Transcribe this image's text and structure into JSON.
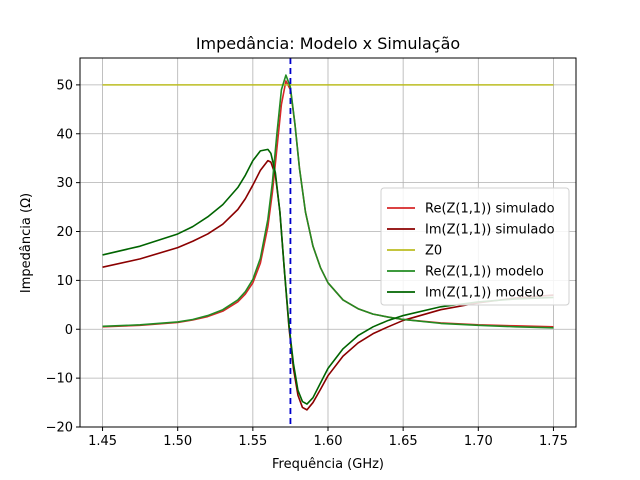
{
  "chart_data": {
    "type": "line",
    "title": "Impedância: Modelo x Simulação",
    "xlabel": "Frequência (GHz)",
    "ylabel": "Impedância (Ω)",
    "xlim": [
      1.435,
      1.765
    ],
    "ylim": [
      -20,
      55.5
    ],
    "xticks": [
      1.45,
      1.5,
      1.55,
      1.6,
      1.65,
      1.7,
      1.75
    ],
    "xtick_labels": [
      "1.45",
      "1.50",
      "1.55",
      "1.60",
      "1.65",
      "1.70",
      "1.75"
    ],
    "yticks": [
      -20,
      -10,
      0,
      10,
      20,
      30,
      40,
      50
    ],
    "ytick_labels": [
      "−20",
      "−10",
      "0",
      "10",
      "20",
      "30",
      "40",
      "50"
    ],
    "grid": true,
    "legend_position": "center-right",
    "vline": {
      "x": 1.575,
      "color": "#0000cc",
      "style": "dashed"
    },
    "series": [
      {
        "name": "Re(Z(1,1)) simulado",
        "color": "#d62728",
        "x": [
          1.45,
          1.475,
          1.5,
          1.51,
          1.52,
          1.53,
          1.54,
          1.545,
          1.55,
          1.555,
          1.56,
          1.563,
          1.566,
          1.569,
          1.572,
          1.575,
          1.578,
          1.581,
          1.585,
          1.59,
          1.595,
          1.6,
          1.61,
          1.62,
          1.63,
          1.64,
          1.65,
          1.675,
          1.7,
          1.725,
          1.75
        ],
        "y": [
          0.5,
          0.8,
          1.4,
          1.9,
          2.6,
          3.7,
          5.6,
          7.2,
          9.5,
          13.5,
          21,
          28,
          37,
          46,
          50.8,
          49,
          42,
          33,
          24,
          17,
          12.6,
          9.5,
          6,
          4.2,
          3.1,
          2.5,
          2,
          1.3,
          0.9,
          0.7,
          0.5
        ]
      },
      {
        "name": "Im(Z(1,1)) simulado",
        "color": "#8b0000",
        "x": [
          1.45,
          1.475,
          1.5,
          1.51,
          1.52,
          1.53,
          1.54,
          1.545,
          1.55,
          1.555,
          1.56,
          1.562,
          1.565,
          1.568,
          1.571,
          1.574,
          1.577,
          1.58,
          1.583,
          1.586,
          1.59,
          1.595,
          1.6,
          1.61,
          1.62,
          1.63,
          1.64,
          1.65,
          1.675,
          1.7,
          1.725,
          1.75
        ],
        "y": [
          12.7,
          14.4,
          16.7,
          18,
          19.5,
          21.5,
          24.5,
          26.7,
          29.5,
          32.5,
          34.5,
          34.2,
          31.5,
          24,
          12,
          0.5,
          -8,
          -13.5,
          -16,
          -16.5,
          -15,
          -12.3,
          -9.5,
          -5.5,
          -2.8,
          -0.9,
          0.5,
          1.8,
          4,
          5.4,
          6.4,
          7
        ]
      },
      {
        "name": "Z0",
        "color": "#bcbd22",
        "x": [
          1.45,
          1.75
        ],
        "y": [
          50,
          50
        ]
      },
      {
        "name": "Re(Z(1,1)) modelo",
        "color": "#228b22",
        "x": [
          1.45,
          1.475,
          1.5,
          1.51,
          1.52,
          1.53,
          1.54,
          1.545,
          1.55,
          1.555,
          1.56,
          1.563,
          1.566,
          1.569,
          1.572,
          1.575,
          1.578,
          1.581,
          1.585,
          1.59,
          1.595,
          1.6,
          1.61,
          1.62,
          1.63,
          1.64,
          1.65,
          1.675,
          1.7,
          1.725,
          1.75
        ],
        "y": [
          0.6,
          0.9,
          1.5,
          2,
          2.8,
          4,
          6,
          7.7,
          10.2,
          14.5,
          22.5,
          30,
          40,
          49,
          52,
          49.5,
          42,
          33,
          24,
          17,
          12.6,
          9.5,
          6,
          4.2,
          3.1,
          2.5,
          2,
          1.2,
          0.8,
          0.5,
          0.3
        ]
      },
      {
        "name": "Im(Z(1,1)) modelo",
        "color": "#006400",
        "x": [
          1.45,
          1.475,
          1.5,
          1.51,
          1.52,
          1.53,
          1.54,
          1.545,
          1.55,
          1.555,
          1.56,
          1.562,
          1.565,
          1.568,
          1.571,
          1.574,
          1.577,
          1.58,
          1.583,
          1.586,
          1.59,
          1.595,
          1.6,
          1.61,
          1.62,
          1.63,
          1.64,
          1.65,
          1.675,
          1.7,
          1.725,
          1.75
        ],
        "y": [
          15.2,
          17,
          19.5,
          21,
          23,
          25.5,
          29,
          31.5,
          34.5,
          36.5,
          36.8,
          36,
          32,
          24,
          12,
          1,
          -7,
          -12.5,
          -14.8,
          -15.3,
          -14,
          -11,
          -8,
          -4,
          -1.3,
          0.5,
          1.8,
          2.8,
          4.6,
          5.6,
          6.2,
          6.5
        ]
      }
    ]
  }
}
